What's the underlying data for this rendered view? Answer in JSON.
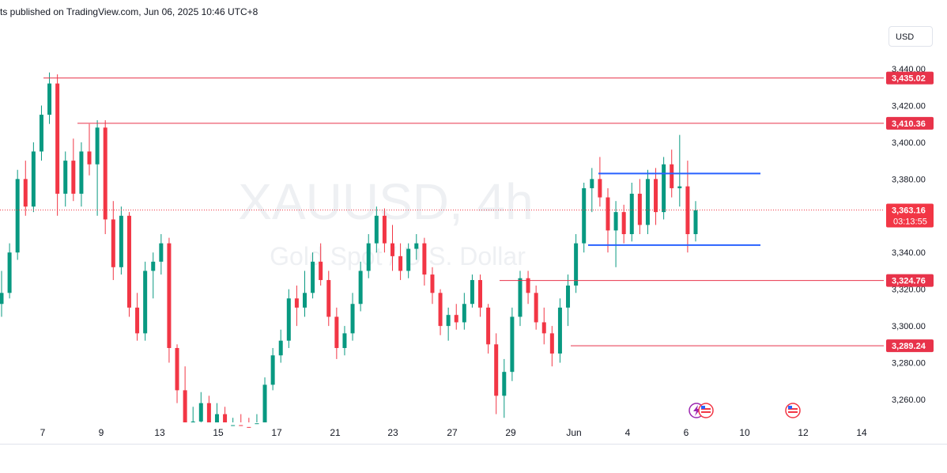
{
  "header": {
    "published_text": "ts published on TradingView.com, Jun 06, 2025 10:46 UTC+8"
  },
  "currency_button": {
    "label": "USD"
  },
  "watermark": {
    "symbol": "XAUUSD, 4h",
    "description": "Gold Spot / U.S. Dollar"
  },
  "colors": {
    "up": "#089981",
    "down": "#f23645",
    "range_lines": "#2962ff",
    "level_lines": "#e8334a",
    "grid_text": "#131722"
  },
  "chart_data": {
    "type": "candlestick",
    "title": "",
    "y_axis": {
      "ylim": [
        3244,
        3446
      ],
      "ticks": [
        3260,
        3280,
        3300,
        3320,
        3340,
        3380,
        3400,
        3420,
        3440
      ],
      "tick_labels": [
        "3,260.00",
        "3,280.00",
        "3,300.00",
        "3,320.00",
        "3,340.00",
        "3,380.00",
        "3,400.00",
        "3,420.00",
        "3,440.00"
      ]
    },
    "x_axis": {
      "labels": [
        "7",
        "9",
        "13",
        "15",
        "17",
        "21",
        "23",
        "27",
        "29",
        "Jun",
        "4",
        "6",
        "10",
        "12",
        "14"
      ]
    },
    "horizontal_levels": [
      {
        "value": 3435.02,
        "label": "3,435.02"
      },
      {
        "value": 3410.36,
        "label": "3,410.36"
      },
      {
        "value": 3324.76,
        "label": "3,324.76"
      },
      {
        "value": 3289.24,
        "label": "3,289.24"
      }
    ],
    "range_box": {
      "upper": 3383,
      "lower": 3344
    },
    "last_price": {
      "value": 3363.16,
      "label": "3,363.16",
      "countdown": "03:13:55"
    },
    "candles": [
      [
        3312,
        3330,
        3305,
        3318
      ],
      [
        3318,
        3345,
        3315,
        3340
      ],
      [
        3340,
        3385,
        3336,
        3380
      ],
      [
        3380,
        3390,
        3360,
        3365
      ],
      [
        3365,
        3400,
        3362,
        3395
      ],
      [
        3395,
        3420,
        3390,
        3415
      ],
      [
        3415,
        3438,
        3410,
        3432
      ],
      [
        3432,
        3437,
        3360,
        3372
      ],
      [
        3372,
        3395,
        3365,
        3390
      ],
      [
        3390,
        3402,
        3368,
        3372
      ],
      [
        3372,
        3400,
        3365,
        3395
      ],
      [
        3395,
        3410,
        3382,
        3388
      ],
      [
        3388,
        3412,
        3360,
        3408
      ],
      [
        3408,
        3412,
        3350,
        3358
      ],
      [
        3358,
        3368,
        3325,
        3332
      ],
      [
        3332,
        3365,
        3328,
        3360
      ],
      [
        3360,
        3362,
        3305,
        3310
      ],
      [
        3310,
        3318,
        3292,
        3296
      ],
      [
        3296,
        3335,
        3292,
        3330
      ],
      [
        3330,
        3340,
        3315,
        3335
      ],
      [
        3335,
        3350,
        3328,
        3345
      ],
      [
        3345,
        3348,
        3280,
        3288
      ],
      [
        3288,
        3290,
        3258,
        3265
      ],
      [
        3265,
        3278,
        3240,
        3245
      ],
      [
        3245,
        3256,
        3238,
        3248
      ],
      [
        3248,
        3264,
        3240,
        3258
      ],
      [
        3258,
        3262,
        3238,
        3245
      ],
      [
        3245,
        3258,
        3238,
        3252
      ],
      [
        3252,
        3256,
        3238,
        3242
      ],
      [
        3242,
        3250,
        3238,
        3246
      ],
      [
        3246,
        3252,
        3238,
        3245
      ],
      [
        3245,
        3250,
        3238,
        3244
      ],
      [
        3244,
        3252,
        3238,
        3247
      ],
      [
        3247,
        3272,
        3244,
        3268
      ],
      [
        3268,
        3288,
        3265,
        3284
      ],
      [
        3284,
        3298,
        3280,
        3292
      ],
      [
        3292,
        3320,
        3288,
        3315
      ],
      [
        3315,
        3322,
        3300,
        3310
      ],
      [
        3310,
        3330,
        3305,
        3318
      ],
      [
        3318,
        3340,
        3315,
        3335
      ],
      [
        3335,
        3345,
        3322,
        3325
      ],
      [
        3325,
        3330,
        3300,
        3305
      ],
      [
        3305,
        3310,
        3282,
        3288
      ],
      [
        3288,
        3300,
        3284,
        3296
      ],
      [
        3296,
        3318,
        3292,
        3312
      ],
      [
        3312,
        3335,
        3308,
        3330
      ],
      [
        3330,
        3350,
        3326,
        3345
      ],
      [
        3345,
        3365,
        3340,
        3360
      ],
      [
        3360,
        3364,
        3340,
        3345
      ],
      [
        3345,
        3355,
        3330,
        3338
      ],
      [
        3338,
        3345,
        3325,
        3330
      ],
      [
        3330,
        3345,
        3326,
        3342
      ],
      [
        3342,
        3350,
        3336,
        3345
      ],
      [
        3345,
        3348,
        3322,
        3328
      ],
      [
        3328,
        3332,
        3312,
        3318
      ],
      [
        3318,
        3320,
        3295,
        3300
      ],
      [
        3300,
        3310,
        3292,
        3306
      ],
      [
        3306,
        3312,
        3298,
        3302
      ],
      [
        3302,
        3318,
        3298,
        3312
      ],
      [
        3312,
        3328,
        3310,
        3325
      ],
      [
        3325,
        3328,
        3305,
        3310
      ],
      [
        3310,
        3312,
        3285,
        3290
      ],
      [
        3290,
        3296,
        3252,
        3262
      ],
      [
        3262,
        3282,
        3250,
        3275
      ],
      [
        3275,
        3310,
        3270,
        3305
      ],
      [
        3305,
        3330,
        3300,
        3326
      ],
      [
        3326,
        3330,
        3312,
        3318
      ],
      [
        3318,
        3322,
        3298,
        3302
      ],
      [
        3302,
        3310,
        3290,
        3296
      ],
      [
        3296,
        3300,
        3278,
        3285
      ],
      [
        3285,
        3315,
        3280,
        3310
      ],
      [
        3310,
        3328,
        3300,
        3322
      ],
      [
        3322,
        3350,
        3318,
        3345
      ],
      [
        3345,
        3378,
        3340,
        3375
      ],
      [
        3375,
        3386,
        3362,
        3380
      ],
      [
        3380,
        3392,
        3365,
        3370
      ],
      [
        3370,
        3375,
        3340,
        3352
      ],
      [
        3352,
        3368,
        3332,
        3362
      ],
      [
        3362,
        3366,
        3345,
        3350
      ],
      [
        3350,
        3378,
        3346,
        3372
      ],
      [
        3372,
        3380,
        3350,
        3355
      ],
      [
        3355,
        3385,
        3350,
        3380
      ],
      [
        3380,
        3386,
        3355,
        3362
      ],
      [
        3362,
        3392,
        3358,
        3388
      ],
      [
        3388,
        3396,
        3370,
        3375
      ],
      [
        3375,
        3404,
        3365,
        3376
      ],
      [
        3376,
        3390,
        3340,
        3350
      ],
      [
        3350,
        3368,
        3346,
        3363
      ]
    ]
  }
}
